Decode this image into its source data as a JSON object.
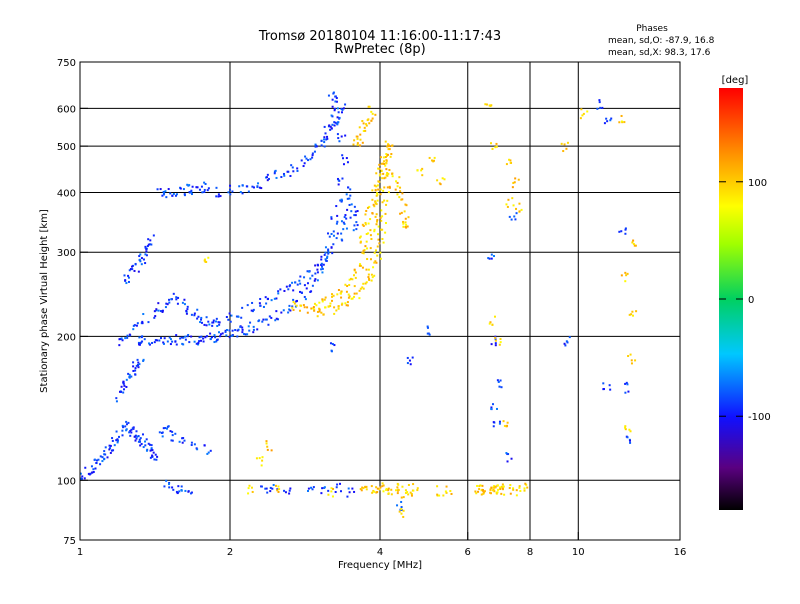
{
  "chart_data": {
    "type": "scatter",
    "title": "Tromsø 20180104 11:16:00-11:17:43",
    "subtitle": "RwPretec (8p)",
    "xlabel": "Frequency [MHz]",
    "ylabel": "Stationary phase Virtual Height [km]",
    "x_scale": "log",
    "y_scale": "log",
    "xlim": [
      1,
      16
    ],
    "ylim": [
      75,
      750
    ],
    "x_ticks": [
      1,
      2,
      4,
      6,
      8,
      10,
      16
    ],
    "x_tick_labels": [
      "1",
      "2",
      "4",
      "6",
      "8",
      "10",
      "16"
    ],
    "y_ticks": [
      75,
      100,
      200,
      300,
      400,
      500,
      600,
      750
    ],
    "y_tick_labels": [
      "75",
      "100",
      "200",
      "300",
      "400",
      "500",
      "600",
      "750"
    ],
    "grid": true,
    "legend": {
      "title": "Phases",
      "lines": [
        "mean, sd,O: -87.9, 16.8",
        "mean, sd,X:  98.3, 17.6"
      ],
      "placement": "top-right"
    },
    "colorbar": {
      "label": "[deg]",
      "range": [
        -180,
        180
      ],
      "ticks": [
        100,
        0,
        -100
      ],
      "tick_labels": [
        "100",
        "0",
        "-100"
      ]
    },
    "series": [
      {
        "name": "O",
        "mean_phase": -87.9,
        "sd_phase": 16.8,
        "points": [
          [
            1.0,
            103
          ],
          [
            1.02,
            101
          ],
          [
            1.04,
            104
          ],
          [
            1.06,
            106
          ],
          [
            1.08,
            109
          ],
          [
            1.1,
            111
          ],
          [
            1.12,
            113
          ],
          [
            1.14,
            116
          ],
          [
            1.16,
            118
          ],
          [
            1.18,
            121
          ],
          [
            1.2,
            124
          ],
          [
            1.22,
            127
          ],
          [
            1.24,
            130
          ],
          [
            1.26,
            128
          ],
          [
            1.28,
            126
          ],
          [
            1.3,
            124
          ],
          [
            1.32,
            122
          ],
          [
            1.34,
            120
          ],
          [
            1.36,
            118
          ],
          [
            1.38,
            116
          ],
          [
            1.4,
            114
          ],
          [
            1.42,
            112
          ],
          [
            1.2,
            150
          ],
          [
            1.22,
            156
          ],
          [
            1.24,
            162
          ],
          [
            1.26,
            166
          ],
          [
            1.28,
            170
          ],
          [
            1.3,
            174
          ],
          [
            1.32,
            176
          ],
          [
            1.25,
            262
          ],
          [
            1.27,
            272
          ],
          [
            1.29,
            280
          ],
          [
            1.31,
            286
          ],
          [
            1.33,
            292
          ],
          [
            1.35,
            300
          ],
          [
            1.37,
            310
          ],
          [
            1.39,
            318
          ],
          [
            1.2,
            196
          ],
          [
            1.25,
            197
          ],
          [
            1.3,
            196
          ],
          [
            1.35,
            197
          ],
          [
            1.4,
            196
          ],
          [
            1.45,
            197
          ],
          [
            1.5,
            196
          ],
          [
            1.55,
            197
          ],
          [
            1.6,
            196
          ],
          [
            1.65,
            197
          ],
          [
            1.7,
            197
          ],
          [
            1.75,
            198
          ],
          [
            1.8,
            198
          ],
          [
            1.85,
            199
          ],
          [
            1.9,
            200
          ],
          [
            1.95,
            201
          ],
          [
            2.0,
            202
          ],
          [
            2.05,
            203
          ],
          [
            2.1,
            205
          ],
          [
            2.15,
            207
          ],
          [
            2.2,
            209
          ],
          [
            2.3,
            212
          ],
          [
            2.4,
            216
          ],
          [
            2.5,
            221
          ],
          [
            2.6,
            227
          ],
          [
            2.7,
            234
          ],
          [
            2.8,
            243
          ],
          [
            2.9,
            254
          ],
          [
            3.0,
            266
          ],
          [
            3.05,
            276
          ],
          [
            3.1,
            288
          ],
          [
            3.15,
            304
          ],
          [
            3.2,
            324
          ],
          [
            3.25,
            350
          ],
          [
            3.3,
            382
          ],
          [
            3.35,
            420
          ],
          [
            3.4,
            470
          ],
          [
            1.3,
            212
          ],
          [
            1.35,
            218
          ],
          [
            1.4,
            224
          ],
          [
            1.45,
            230
          ],
          [
            1.5,
            236
          ],
          [
            1.55,
            240
          ],
          [
            1.6,
            235
          ],
          [
            1.65,
            228
          ],
          [
            1.7,
            222
          ],
          [
            1.75,
            218
          ],
          [
            1.8,
            215
          ],
          [
            1.85,
            213
          ],
          [
            1.9,
            214
          ],
          [
            2.0,
            218
          ],
          [
            2.1,
            224
          ],
          [
            2.2,
            231
          ],
          [
            2.3,
            236
          ],
          [
            2.4,
            240
          ],
          [
            2.5,
            245
          ],
          [
            2.6,
            250
          ],
          [
            2.7,
            256
          ],
          [
            2.8,
            262
          ],
          [
            2.9,
            270
          ],
          [
            3.0,
            280
          ],
          [
            3.1,
            292
          ],
          [
            3.2,
            306
          ],
          [
            3.3,
            322
          ],
          [
            3.4,
            342
          ],
          [
            3.45,
            360
          ],
          [
            1.45,
            398
          ],
          [
            1.5,
            400
          ],
          [
            1.55,
            402
          ],
          [
            1.6,
            404
          ],
          [
            1.65,
            406
          ],
          [
            1.7,
            407
          ],
          [
            1.75,
            409
          ],
          [
            1.8,
            410
          ],
          [
            1.9,
            402
          ],
          [
            2.0,
            404
          ],
          [
            2.1,
            408
          ],
          [
            2.2,
            412
          ],
          [
            2.3,
            418
          ],
          [
            2.4,
            426
          ],
          [
            2.5,
            434
          ],
          [
            2.6,
            444
          ],
          [
            2.7,
            454
          ],
          [
            2.8,
            466
          ],
          [
            2.9,
            478
          ],
          [
            3.0,
            492
          ],
          [
            3.05,
            506
          ],
          [
            3.1,
            520
          ],
          [
            3.15,
            536
          ],
          [
            3.2,
            552
          ],
          [
            3.25,
            568
          ],
          [
            3.3,
            586
          ],
          [
            3.35,
            600
          ],
          [
            3.2,
            640
          ],
          [
            3.25,
            620
          ],
          [
            3.3,
            560
          ],
          [
            3.35,
            520
          ],
          [
            3.45,
            400
          ],
          [
            3.5,
            380
          ],
          [
            3.55,
            360
          ],
          [
            3.6,
            340
          ],
          [
            1.5,
            98
          ],
          [
            1.55,
            96
          ],
          [
            1.6,
            95
          ],
          [
            1.65,
            94
          ],
          [
            2.35,
            95
          ],
          [
            2.45,
            97
          ],
          [
            2.6,
            94
          ],
          [
            2.9,
            96
          ],
          [
            3.1,
            95
          ],
          [
            3.3,
            96
          ],
          [
            3.5,
            94
          ],
          [
            1.45,
            126
          ],
          [
            1.5,
            128
          ],
          [
            1.55,
            124
          ],
          [
            1.6,
            120
          ],
          [
            1.7,
            118
          ],
          [
            1.8,
            116
          ],
          [
            6.7,
            292
          ],
          [
            6.75,
            196
          ],
          [
            6.8,
            142
          ],
          [
            6.85,
            133
          ],
          [
            7.4,
            355
          ],
          [
            7.0,
            160
          ],
          [
            7.3,
            112
          ],
          [
            11.5,
            560
          ],
          [
            12.3,
            330
          ],
          [
            12.5,
            156
          ],
          [
            12.6,
            122
          ],
          [
            11.4,
            158
          ],
          [
            11.1,
            610
          ],
          [
            9.5,
            196
          ],
          [
            3.2,
            190
          ],
          [
            4.6,
            177
          ],
          [
            5.0,
            205
          ],
          [
            4.4,
            88
          ]
        ]
      },
      {
        "name": "X",
        "mean_phase": 98.3,
        "sd_phase": 17.6,
        "points": [
          [
            2.7,
            232
          ],
          [
            2.8,
            228
          ],
          [
            2.9,
            226
          ],
          [
            3.0,
            225
          ],
          [
            3.1,
            226
          ],
          [
            3.2,
            228
          ],
          [
            3.3,
            231
          ],
          [
            3.4,
            235
          ],
          [
            3.5,
            240
          ],
          [
            3.6,
            246
          ],
          [
            3.7,
            254
          ],
          [
            3.8,
            264
          ],
          [
            3.85,
            272
          ],
          [
            3.9,
            284
          ],
          [
            3.95,
            298
          ],
          [
            4.0,
            314
          ],
          [
            4.03,
            332
          ],
          [
            4.06,
            352
          ],
          [
            4.09,
            376
          ],
          [
            4.12,
            404
          ],
          [
            4.15,
            436
          ],
          [
            4.18,
            472
          ],
          [
            4.2,
            505
          ],
          [
            3.0,
            232
          ],
          [
            3.1,
            236
          ],
          [
            3.2,
            240
          ],
          [
            3.3,
            246
          ],
          [
            3.4,
            252
          ],
          [
            3.5,
            260
          ],
          [
            3.6,
            270
          ],
          [
            3.7,
            282
          ],
          [
            3.75,
            296
          ],
          [
            3.8,
            312
          ],
          [
            3.85,
            330
          ],
          [
            3.9,
            352
          ],
          [
            3.95,
            378
          ],
          [
            4.0,
            406
          ],
          [
            4.05,
            438
          ],
          [
            4.08,
            470
          ],
          [
            4.1,
            500
          ],
          [
            3.7,
            320
          ],
          [
            3.75,
            340
          ],
          [
            3.8,
            360
          ],
          [
            3.85,
            380
          ],
          [
            3.9,
            400
          ],
          [
            3.95,
            420
          ],
          [
            4.0,
            440
          ],
          [
            4.05,
            455
          ],
          [
            4.1,
            470
          ],
          [
            4.3,
            430
          ],
          [
            4.35,
            410
          ],
          [
            4.4,
            390
          ],
          [
            4.45,
            370
          ],
          [
            4.5,
            350
          ],
          [
            3.6,
            510
          ],
          [
            3.65,
            520
          ],
          [
            3.7,
            540
          ],
          [
            3.75,
            560
          ],
          [
            3.8,
            575
          ],
          [
            3.85,
            590
          ],
          [
            3.7,
            96
          ],
          [
            3.8,
            95
          ],
          [
            3.9,
            96
          ],
          [
            4.0,
            97
          ],
          [
            4.1,
            96
          ],
          [
            4.2,
            95
          ],
          [
            4.3,
            96
          ],
          [
            4.4,
            95
          ],
          [
            4.5,
            94
          ],
          [
            4.6,
            96
          ],
          [
            4.7,
            95
          ],
          [
            5.3,
            95
          ],
          [
            5.5,
            96
          ],
          [
            6.3,
            95
          ],
          [
            6.4,
            96
          ],
          [
            6.5,
            95
          ],
          [
            6.6,
            96
          ],
          [
            6.7,
            95
          ],
          [
            6.8,
            96
          ],
          [
            6.9,
            95
          ],
          [
            7.0,
            96
          ],
          [
            7.1,
            95
          ],
          [
            7.3,
            96
          ],
          [
            7.6,
            95
          ],
          [
            7.8,
            96
          ],
          [
            3.2,
            94
          ],
          [
            2.5,
            95
          ],
          [
            2.2,
            96
          ],
          [
            6.6,
            610
          ],
          [
            6.8,
            505
          ],
          [
            7.3,
            460
          ],
          [
            7.5,
            420
          ],
          [
            7.6,
            370
          ],
          [
            7.3,
            380
          ],
          [
            6.7,
            215
          ],
          [
            6.9,
            195
          ],
          [
            7.2,
            132
          ],
          [
            12.2,
            575
          ],
          [
            12.4,
            265
          ],
          [
            12.6,
            128
          ],
          [
            12.8,
            180
          ],
          [
            12.9,
            225
          ],
          [
            13.0,
            312
          ],
          [
            10.3,
            585
          ],
          [
            9.4,
            500
          ],
          [
            4.8,
            445
          ],
          [
            5.3,
            425
          ],
          [
            5.1,
            470
          ],
          [
            2.4,
            118
          ],
          [
            2.3,
            110
          ],
          [
            1.8,
            290
          ],
          [
            4.5,
            340
          ],
          [
            4.4,
            85
          ]
        ]
      }
    ]
  }
}
